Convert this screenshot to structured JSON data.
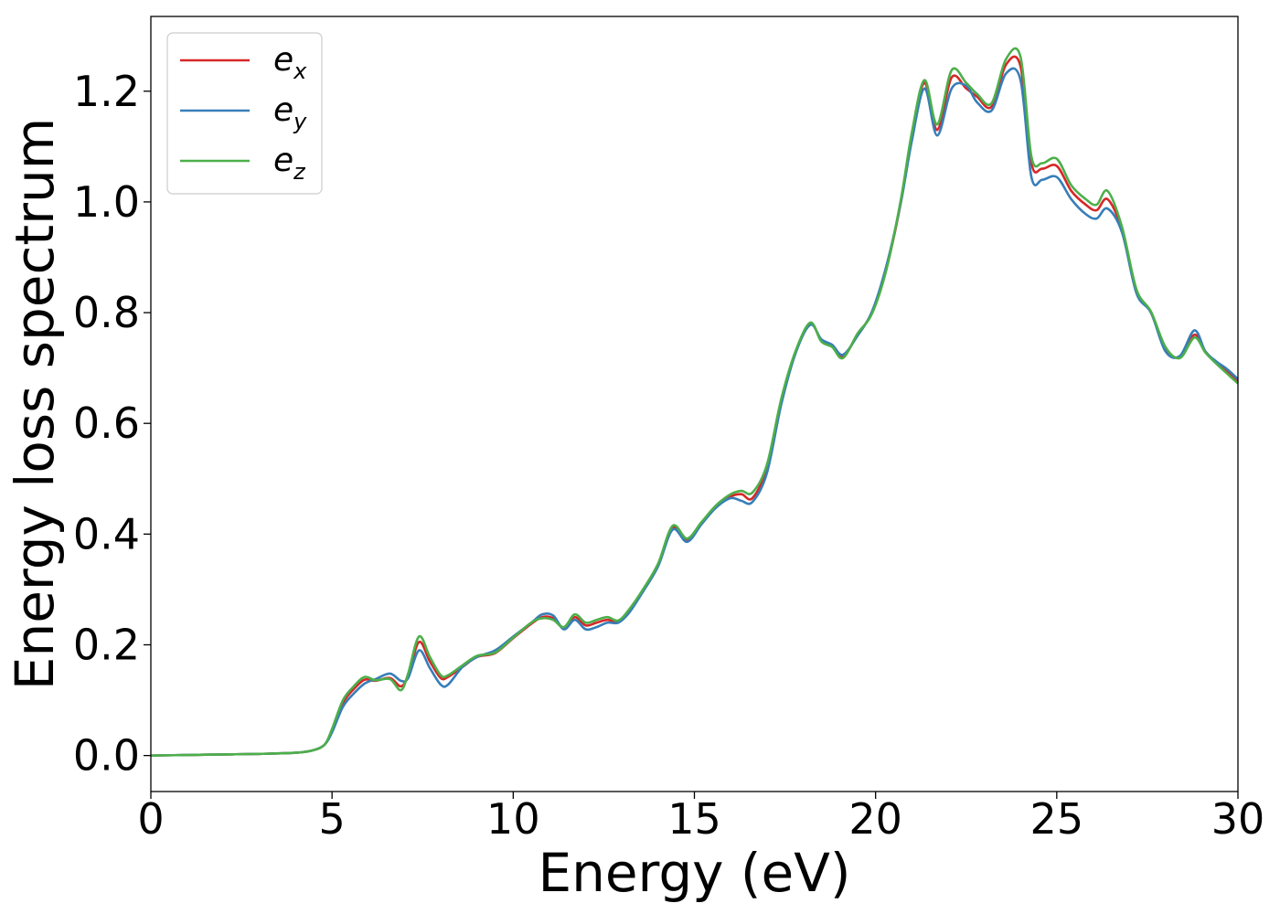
{
  "chart_data": {
    "type": "line",
    "xlabel": "Energy (eV)",
    "ylabel": "Energy loss spectrum",
    "xlim": [
      0,
      30
    ],
    "ylim": [
      -0.065,
      1.335
    ],
    "xticks": [
      0,
      5,
      10,
      15,
      20,
      25,
      30
    ],
    "xtick_labels": [
      "0",
      "5",
      "10",
      "15",
      "20",
      "25",
      "30"
    ],
    "yticks": [
      0.0,
      0.2,
      0.4,
      0.6,
      0.8,
      1.0,
      1.2
    ],
    "ytick_labels": [
      "0.0",
      "0.2",
      "0.4",
      "0.6",
      "0.8",
      "1.0",
      "1.2"
    ],
    "grid": false,
    "legend_position": "top-left",
    "x": [
      0,
      1,
      2,
      3,
      4,
      4.5,
      4.8,
      5.0,
      5.3,
      5.6,
      5.9,
      6.2,
      6.6,
      6.9,
      7.1,
      7.4,
      7.7,
      8.0,
      8.2,
      8.6,
      9.0,
      9.5,
      10.0,
      10.5,
      10.8,
      11.1,
      11.4,
      11.7,
      12.0,
      12.3,
      12.6,
      12.9,
      13.2,
      13.6,
      14.0,
      14.4,
      14.8,
      15.2,
      15.6,
      16.0,
      16.3,
      16.6,
      17.0,
      17.4,
      17.8,
      18.2,
      18.5,
      18.8,
      19.1,
      19.5,
      19.9,
      20.3,
      20.7,
      21.0,
      21.35,
      21.7,
      22.1,
      22.5,
      22.8,
      23.2,
      23.6,
      24.0,
      24.3,
      24.6,
      25.0,
      25.4,
      25.8,
      26.1,
      26.4,
      26.8,
      27.2,
      27.6,
      28.0,
      28.4,
      28.8,
      29.1,
      29.4,
      29.7,
      30.0
    ],
    "series": [
      {
        "name": "e",
        "subscript": "x",
        "color": "#d62728",
        "values": [
          0.0,
          0.001,
          0.002,
          0.003,
          0.005,
          0.01,
          0.02,
          0.045,
          0.095,
          0.12,
          0.137,
          0.135,
          0.14,
          0.125,
          0.145,
          0.205,
          0.17,
          0.14,
          0.142,
          0.16,
          0.178,
          0.185,
          0.212,
          0.238,
          0.25,
          0.248,
          0.23,
          0.25,
          0.235,
          0.24,
          0.245,
          0.242,
          0.262,
          0.3,
          0.345,
          0.412,
          0.39,
          0.42,
          0.45,
          0.468,
          0.472,
          0.465,
          0.52,
          0.64,
          0.73,
          0.78,
          0.75,
          0.74,
          0.72,
          0.76,
          0.8,
          0.88,
          1.0,
          1.12,
          1.215,
          1.13,
          1.225,
          1.205,
          1.19,
          1.172,
          1.248,
          1.245,
          1.07,
          1.06,
          1.065,
          1.02,
          0.995,
          0.985,
          1.005,
          0.95,
          0.84,
          0.8,
          0.735,
          0.72,
          0.76,
          0.73,
          0.71,
          0.695,
          0.675
        ]
      },
      {
        "name": "e",
        "subscript": "y",
        "color": "#377eb8",
        "values": [
          0.0,
          0.001,
          0.002,
          0.003,
          0.005,
          0.01,
          0.02,
          0.042,
          0.088,
          0.112,
          0.13,
          0.138,
          0.148,
          0.135,
          0.14,
          0.19,
          0.158,
          0.128,
          0.128,
          0.16,
          0.178,
          0.19,
          0.215,
          0.24,
          0.255,
          0.253,
          0.228,
          0.245,
          0.228,
          0.232,
          0.24,
          0.24,
          0.258,
          0.298,
          0.342,
          0.408,
          0.386,
          0.418,
          0.448,
          0.465,
          0.46,
          0.458,
          0.51,
          0.635,
          0.728,
          0.778,
          0.752,
          0.742,
          0.724,
          0.758,
          0.802,
          0.885,
          1.0,
          1.11,
          1.205,
          1.12,
          1.205,
          1.21,
          1.18,
          1.165,
          1.232,
          1.22,
          1.045,
          1.04,
          1.045,
          1.005,
          0.978,
          0.97,
          0.988,
          0.945,
          0.835,
          0.8,
          0.73,
          0.722,
          0.768,
          0.73,
          0.712,
          0.698,
          0.68
        ]
      },
      {
        "name": "e",
        "subscript": "z",
        "color": "#4daf4a",
        "values": [
          0.0,
          0.001,
          0.002,
          0.003,
          0.005,
          0.01,
          0.02,
          0.048,
          0.1,
          0.125,
          0.142,
          0.136,
          0.138,
          0.118,
          0.148,
          0.215,
          0.178,
          0.145,
          0.145,
          0.163,
          0.18,
          0.186,
          0.213,
          0.24,
          0.248,
          0.245,
          0.232,
          0.255,
          0.24,
          0.245,
          0.25,
          0.244,
          0.264,
          0.302,
          0.347,
          0.415,
          0.392,
          0.422,
          0.452,
          0.472,
          0.478,
          0.475,
          0.525,
          0.645,
          0.732,
          0.782,
          0.748,
          0.738,
          0.718,
          0.762,
          0.798,
          0.878,
          1.005,
          1.125,
          1.22,
          1.14,
          1.238,
          1.215,
          1.195,
          1.178,
          1.258,
          1.262,
          1.082,
          1.07,
          1.078,
          1.03,
          1.005,
          0.995,
          1.02,
          0.955,
          0.842,
          0.802,
          0.738,
          0.718,
          0.755,
          0.728,
          0.708,
          0.69,
          0.672
        ]
      }
    ]
  }
}
